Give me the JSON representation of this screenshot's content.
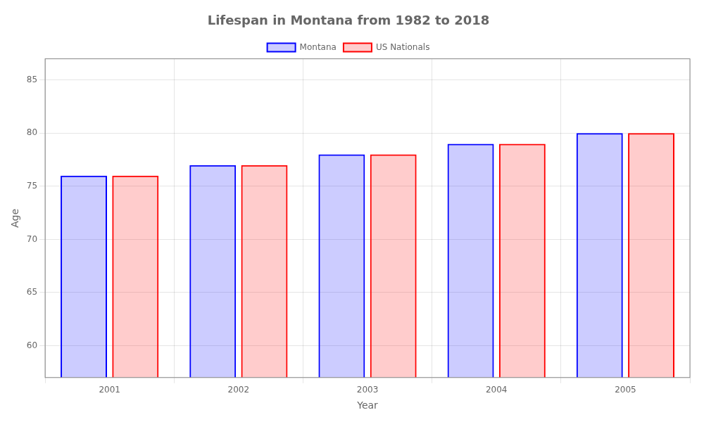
{
  "chart_data": {
    "type": "bar",
    "title": "Lifespan in Montana from 1982 to 2018",
    "x_label": "Year",
    "y_label": "Age",
    "categories": [
      "2001",
      "2002",
      "2003",
      "2004",
      "2005"
    ],
    "series": [
      {
        "name": "Montana",
        "color": "#0000ff",
        "values": [
          76,
          77,
          78,
          79,
          80
        ]
      },
      {
        "name": "US Nationals",
        "color": "#ff0000",
        "values": [
          76,
          77,
          78,
          79,
          80
        ]
      }
    ],
    "ylim": [
      57,
      87
    ],
    "yticks": [
      60,
      65,
      70,
      75,
      80,
      85
    ],
    "grid": true,
    "legend": "top"
  }
}
